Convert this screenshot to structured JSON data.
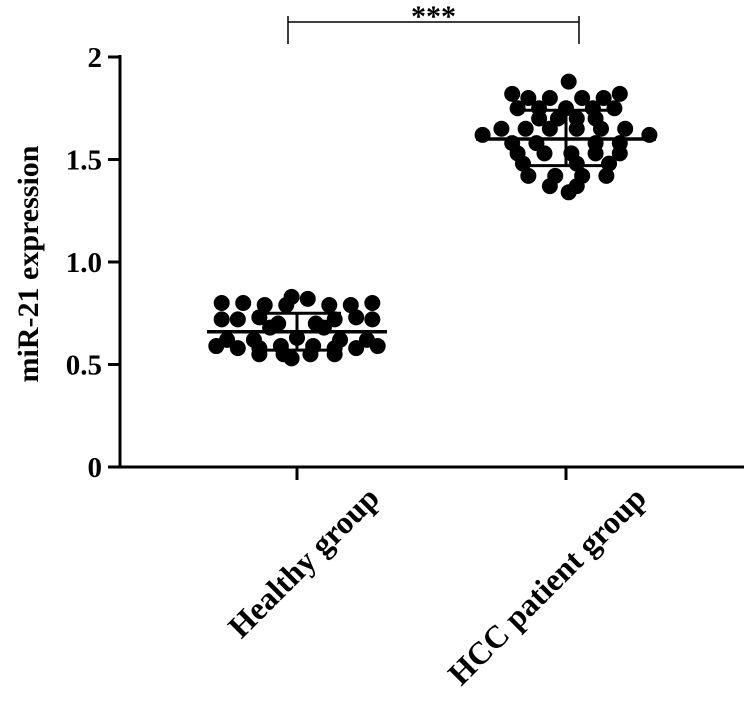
{
  "chart_data": {
    "type": "scatter",
    "title": "",
    "xlabel": "",
    "ylabel": "miR-21 expression",
    "ylim": [
      0,
      2
    ],
    "yticks": [
      {
        "value": 0,
        "label": "0"
      },
      {
        "value": 0.5,
        "label": "0.5"
      },
      {
        "value": 1.0,
        "label": "1.0"
      },
      {
        "value": 1.5,
        "label": "1.5"
      },
      {
        "value": 2,
        "label": "2"
      }
    ],
    "categories": [
      "Healthy group",
      "HCC patient group"
    ],
    "series": [
      {
        "name": "Healthy group",
        "mean": 0.66,
        "sd_upper": 0.75,
        "sd_lower": 0.57,
        "points": [
          {
            "y": 0.8,
            "dx": -0.28
          },
          {
            "y": 0.8,
            "dx": -0.2
          },
          {
            "y": 0.79,
            "dx": -0.12
          },
          {
            "y": 0.79,
            "dx": -0.04
          },
          {
            "y": 0.83,
            "dx": -0.02
          },
          {
            "y": 0.82,
            "dx": 0.04
          },
          {
            "y": 0.79,
            "dx": 0.12
          },
          {
            "y": 0.79,
            "dx": 0.2
          },
          {
            "y": 0.8,
            "dx": 0.28
          },
          {
            "y": 0.72,
            "dx": -0.28
          },
          {
            "y": 0.72,
            "dx": -0.22
          },
          {
            "y": 0.73,
            "dx": -0.14
          },
          {
            "y": 0.7,
            "dx": -0.07
          },
          {
            "y": 0.7,
            "dx": 0.07
          },
          {
            "y": 0.72,
            "dx": 0.14
          },
          {
            "y": 0.73,
            "dx": 0.22
          },
          {
            "y": 0.72,
            "dx": 0.28
          },
          {
            "y": 0.68,
            "dx": -0.1
          },
          {
            "y": 0.68,
            "dx": 0.1
          },
          {
            "y": 0.62,
            "dx": -0.26
          },
          {
            "y": 0.62,
            "dx": -0.16
          },
          {
            "y": 0.63,
            "dx": 0.0
          },
          {
            "y": 0.62,
            "dx": 0.16
          },
          {
            "y": 0.62,
            "dx": 0.26
          },
          {
            "y": 0.59,
            "dx": -0.3
          },
          {
            "y": 0.58,
            "dx": -0.22
          },
          {
            "y": 0.58,
            "dx": -0.14
          },
          {
            "y": 0.59,
            "dx": -0.06
          },
          {
            "y": 0.59,
            "dx": 0.06
          },
          {
            "y": 0.58,
            "dx": 0.14
          },
          {
            "y": 0.58,
            "dx": 0.22
          },
          {
            "y": 0.59,
            "dx": 0.3
          },
          {
            "y": 0.55,
            "dx": -0.14
          },
          {
            "y": 0.55,
            "dx": -0.05
          },
          {
            "y": 0.53,
            "dx": -0.02
          },
          {
            "y": 0.55,
            "dx": 0.05
          },
          {
            "y": 0.55,
            "dx": 0.14
          }
        ]
      },
      {
        "name": "HCC patient group",
        "mean": 1.6,
        "sd_upper": 1.74,
        "sd_lower": 1.47,
        "points": [
          {
            "y": 1.88,
            "dx": 0.01
          },
          {
            "y": 1.82,
            "dx": -0.2
          },
          {
            "y": 1.82,
            "dx": 0.2
          },
          {
            "y": 1.8,
            "dx": -0.14
          },
          {
            "y": 1.8,
            "dx": -0.06
          },
          {
            "y": 1.8,
            "dx": 0.06
          },
          {
            "y": 1.8,
            "dx": 0.14
          },
          {
            "y": 1.75,
            "dx": -0.18
          },
          {
            "y": 1.75,
            "dx": -0.1
          },
          {
            "y": 1.75,
            "dx": 0.0
          },
          {
            "y": 1.75,
            "dx": 0.1
          },
          {
            "y": 1.75,
            "dx": 0.18
          },
          {
            "y": 1.7,
            "dx": -0.1
          },
          {
            "y": 1.7,
            "dx": -0.03
          },
          {
            "y": 1.7,
            "dx": 0.04
          },
          {
            "y": 1.7,
            "dx": 0.11
          },
          {
            "y": 1.65,
            "dx": -0.24
          },
          {
            "y": 1.65,
            "dx": -0.15
          },
          {
            "y": 1.65,
            "dx": -0.06
          },
          {
            "y": 1.65,
            "dx": 0.04
          },
          {
            "y": 1.65,
            "dx": 0.13
          },
          {
            "y": 1.65,
            "dx": 0.22
          },
          {
            "y": 1.62,
            "dx": -0.31
          },
          {
            "y": 1.62,
            "dx": 0.31
          },
          {
            "y": 1.58,
            "dx": -0.2
          },
          {
            "y": 1.58,
            "dx": -0.11
          },
          {
            "y": 1.58,
            "dx": 0.11
          },
          {
            "y": 1.58,
            "dx": 0.2
          },
          {
            "y": 1.53,
            "dx": -0.18
          },
          {
            "y": 1.53,
            "dx": -0.08
          },
          {
            "y": 1.53,
            "dx": 0.02
          },
          {
            "y": 1.53,
            "dx": 0.11
          },
          {
            "y": 1.53,
            "dx": 0.2
          },
          {
            "y": 1.48,
            "dx": -0.16
          },
          {
            "y": 1.48,
            "dx": 0.04
          },
          {
            "y": 1.48,
            "dx": 0.16
          },
          {
            "y": 1.42,
            "dx": -0.14
          },
          {
            "y": 1.42,
            "dx": -0.04
          },
          {
            "y": 1.42,
            "dx": 0.06
          },
          {
            "y": 1.42,
            "dx": 0.15
          },
          {
            "y": 1.37,
            "dx": -0.06
          },
          {
            "y": 1.37,
            "dx": 0.04
          },
          {
            "y": 1.34,
            "dx": 0.01
          }
        ]
      }
    ],
    "annotations": [
      {
        "type": "significance_bracket",
        "from": "Healthy group",
        "to": "HCC patient group",
        "label": "***"
      }
    ],
    "grid": false,
    "legend": "none"
  }
}
